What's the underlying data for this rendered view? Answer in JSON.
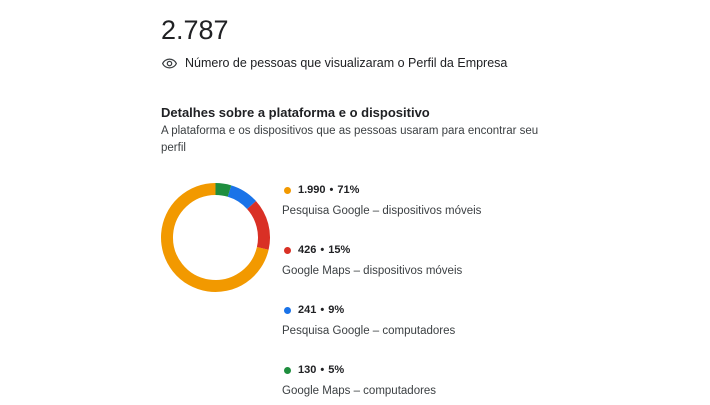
{
  "summary": {
    "total": "2.787",
    "description": "Número de pessoas que visualizaram o Perfil da Empresa"
  },
  "section": {
    "title": "Detalhes sobre a plataforma e o dispositivo",
    "description": "A plataforma e os dispositivos que as pessoas usaram para encontrar seu perfil"
  },
  "colors": {
    "orange": "#f29900",
    "red": "#d93025",
    "blue": "#1a73e8",
    "green": "#1e8e3e"
  },
  "chart_data": {
    "type": "pie",
    "donut": true,
    "categories": [
      "Pesquisa Google – dispositivos móveis",
      "Google Maps – dispositivos móveis",
      "Pesquisa Google – computadores",
      "Google Maps – computadores"
    ],
    "values": [
      1990,
      426,
      241,
      130
    ],
    "value_labels": [
      "1.990",
      "426",
      "241",
      "130"
    ],
    "percent_labels": [
      "71%",
      "15%",
      "9%",
      "5%"
    ],
    "colors": [
      "#f29900",
      "#d93025",
      "#1a73e8",
      "#1e8e3e"
    ],
    "legend_placement": "right"
  }
}
